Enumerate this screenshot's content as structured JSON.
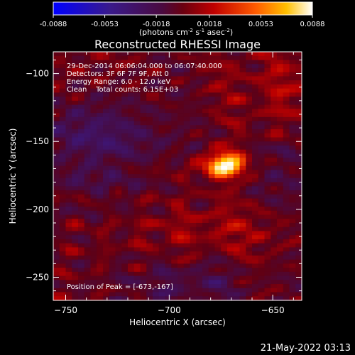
{
  "colorbar": {
    "ticks": [
      "-0.0088",
      "-0.0053",
      "-0.0018",
      "0.0018",
      "0.0053",
      "0.0088"
    ],
    "unit_parts": {
      "a": "(photons cm",
      "b": "-2",
      "c": " s",
      "d": "-1",
      "e": " asec",
      "f": "-2",
      "g": ")"
    },
    "min": -0.0088,
    "max": 0.0088
  },
  "chart_data": {
    "type": "heatmap",
    "title": "Reconstructed RHESSI Image",
    "xlabel": "Heliocentric X (arcsec)",
    "ylabel": "Heliocentric Y (arcsec)",
    "xlim": [
      -756,
      -636
    ],
    "ylim": [
      -267,
      -84
    ],
    "xticks": [
      -750,
      -700,
      -650,
      -600
    ],
    "yticks": [
      -100,
      -150,
      -200,
      -250
    ],
    "peak": {
      "x": -673,
      "y": -167,
      "value": 0.0088
    },
    "annotations": [
      "29-Dec-2014 06:06:04.000 to 06:07:40.000",
      "Detectors: 3F 6F 7F 9F, Att 0",
      "Energy Range: 6.0 - 12.0 keV",
      "Clean    Total counts: 6.15E+03"
    ],
    "peak_label": "Position of Peak = [-673,-167]"
  },
  "footer_timestamp": "21-May-2022 03:13"
}
